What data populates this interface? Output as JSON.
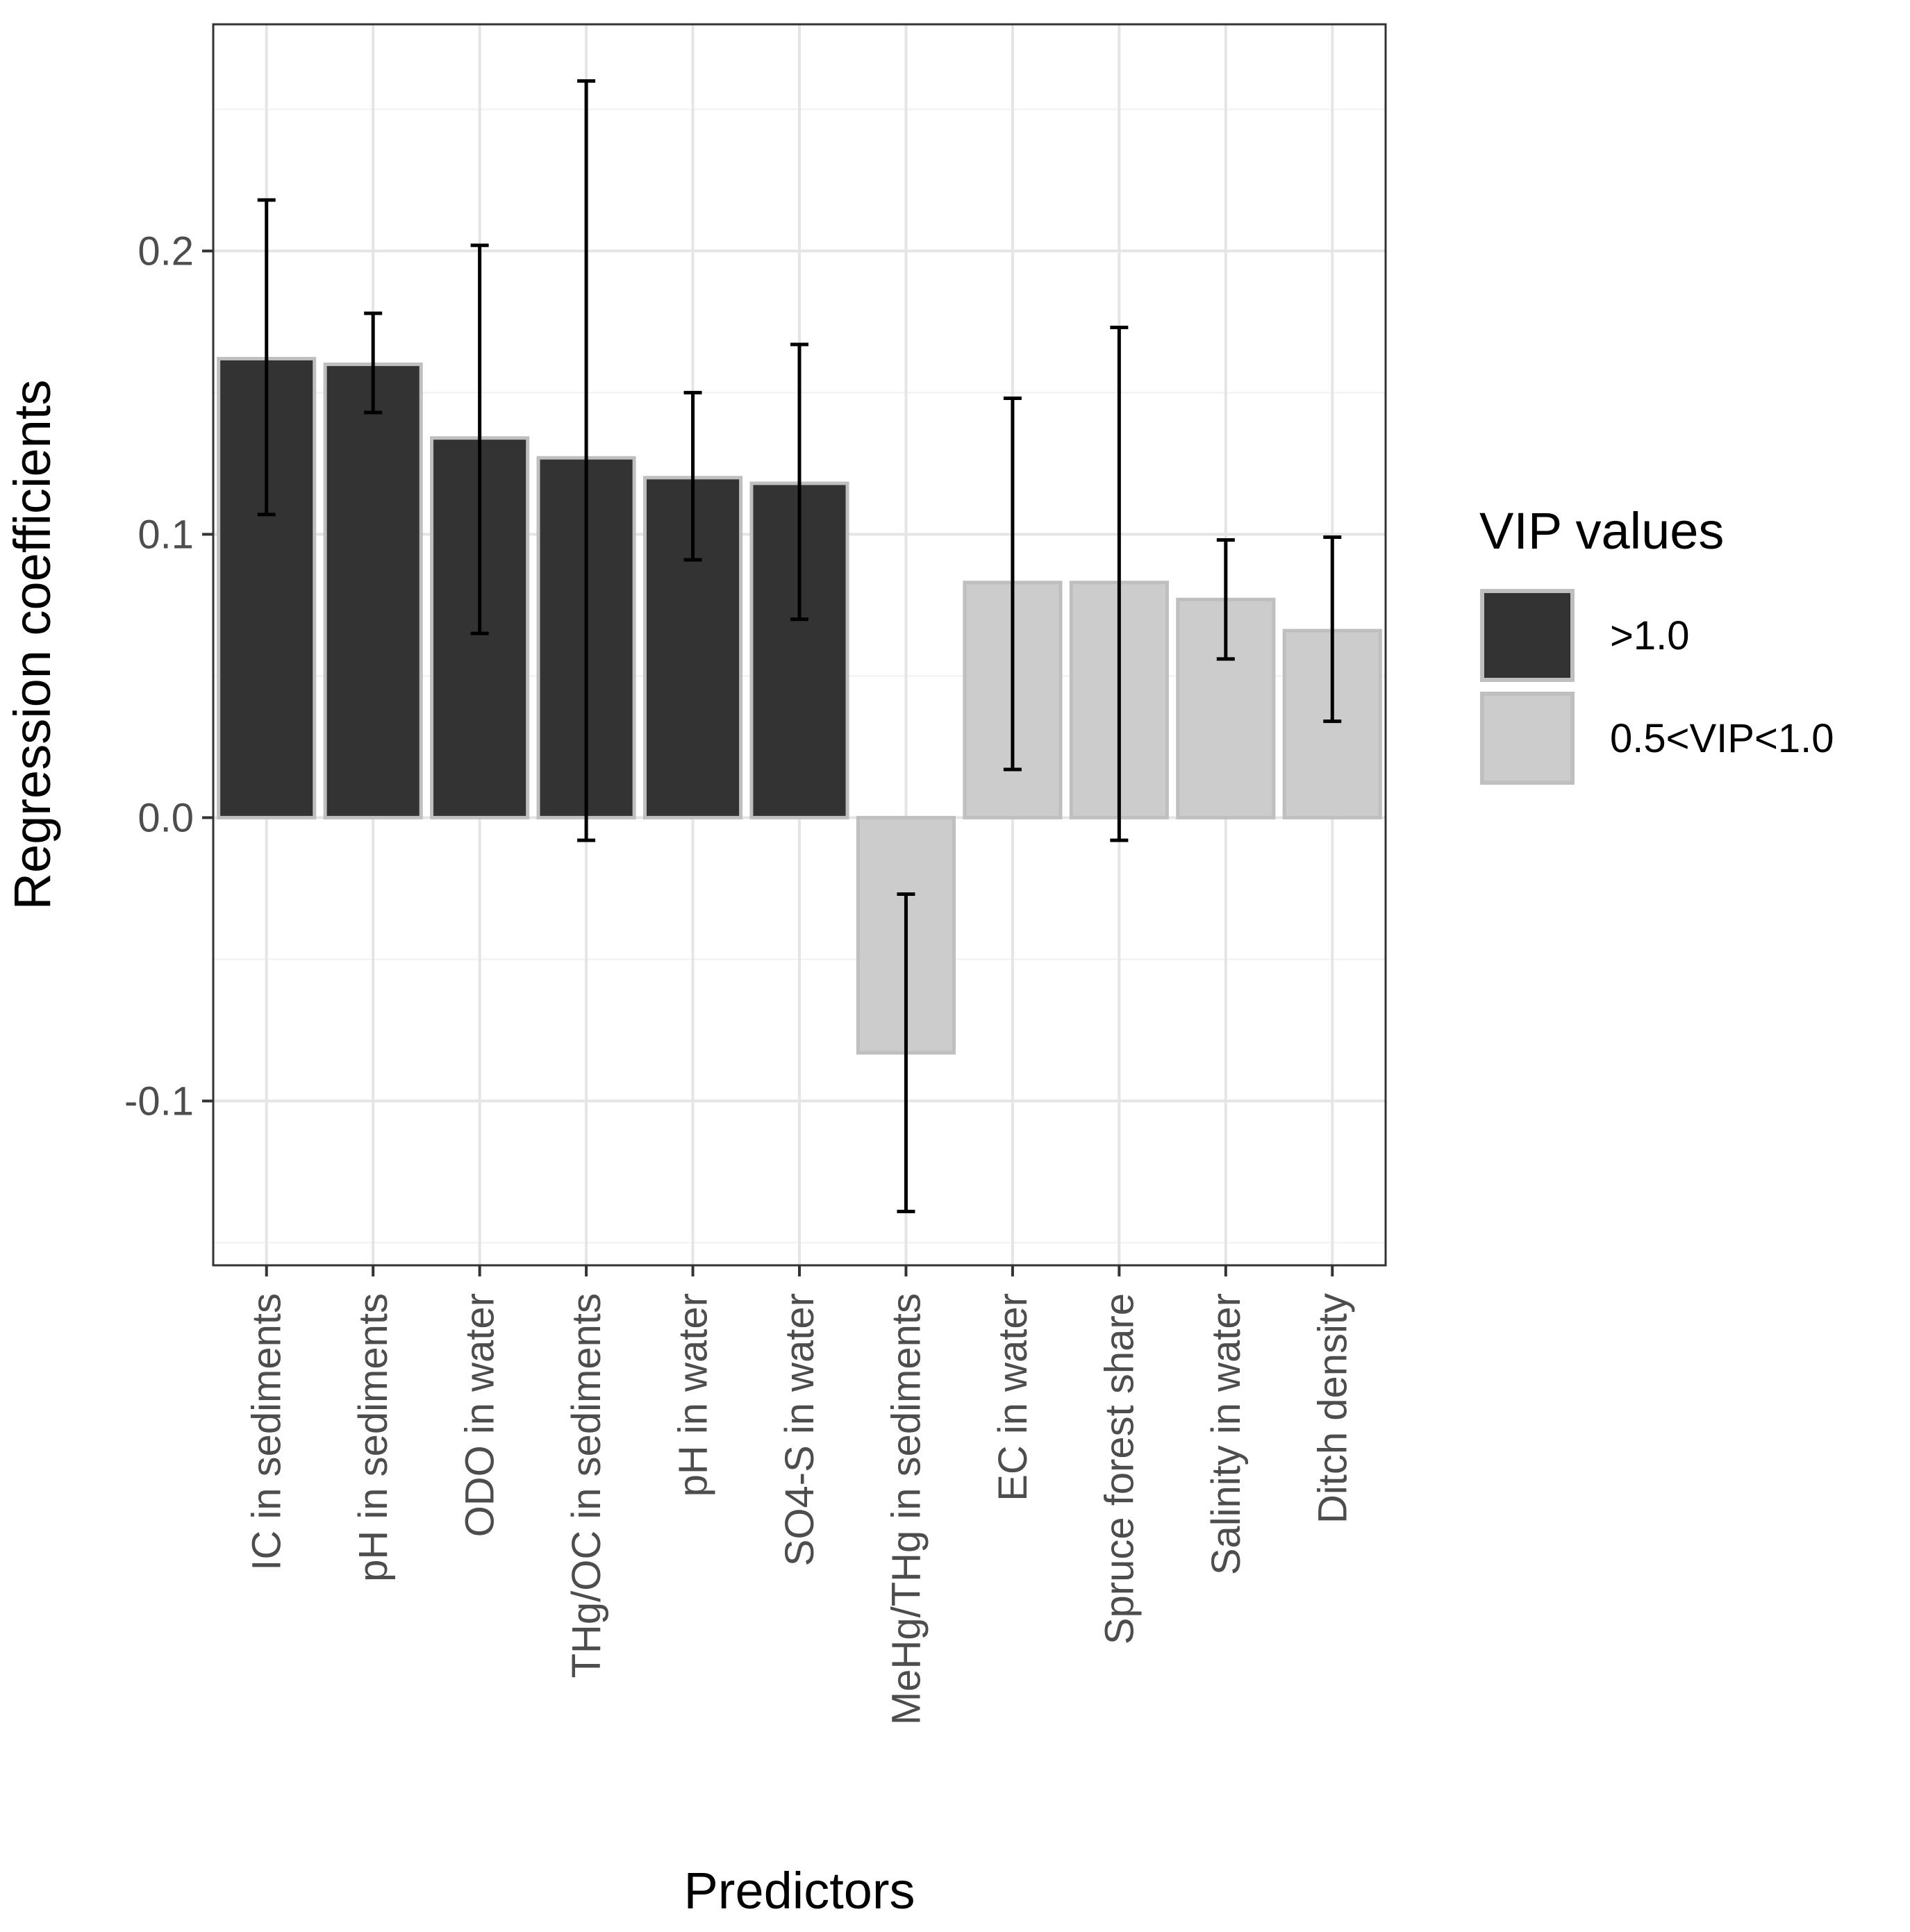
{
  "chart_data": {
    "type": "bar",
    "xlabel": "Predictors",
    "ylabel": "Regression coefficients",
    "ylim": [
      -0.158,
      0.28
    ],
    "yticks": [
      "0.2",
      "0.1",
      "0.0",
      "-0.1"
    ],
    "ytick_values": [
      0.2,
      0.1,
      0.0,
      -0.1
    ],
    "grid": true,
    "legend_position": "right",
    "legend_title": "VIP values",
    "groups": [
      {
        "label": ">1.0",
        "color": "#333333"
      },
      {
        "label": "0.5<VIP<1.0",
        "color": "#cccccc"
      }
    ],
    "categories": [
      "IC in sediments",
      "pH in sediments",
      "ODO in water",
      "THg/OC in sediments",
      "pH in water",
      "SO4-S in water",
      "MeHg/THg in sediments",
      "EC in water",
      "Spruce forest share",
      "Salinity in water",
      "Ditch density"
    ],
    "values": [
      0.162,
      0.16,
      0.134,
      0.127,
      0.12,
      0.118,
      -0.083,
      0.083,
      0.083,
      0.077,
      0.066
    ],
    "error_low": [
      0.107,
      0.143,
      0.065,
      -0.008,
      0.091,
      0.07,
      -0.139,
      0.017,
      -0.008,
      0.056,
      0.034
    ],
    "error_high": [
      0.218,
      0.178,
      0.202,
      0.26,
      0.15,
      0.167,
      -0.027,
      0.148,
      0.173,
      0.098,
      0.099
    ],
    "group_index": [
      0,
      0,
      0,
      0,
      0,
      0,
      1,
      1,
      1,
      1,
      1
    ]
  }
}
